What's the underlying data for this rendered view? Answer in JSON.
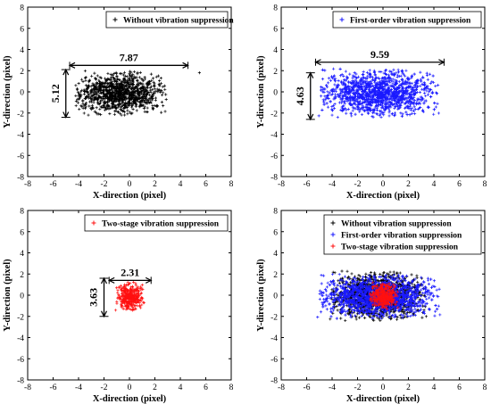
{
  "chart_data": [
    {
      "type": "scatter",
      "xlabel": "X-direction (pixel)",
      "ylabel": "Y-direction (pixel)",
      "xlim": [
        -8,
        8
      ],
      "ylim": [
        -8,
        8
      ],
      "xticks": [
        "-8",
        "-6",
        "-4",
        "-2",
        "0",
        "2",
        "4",
        "6",
        "8"
      ],
      "yticks": [
        "-8",
        "-6",
        "-4",
        "-2",
        "0",
        "2",
        "4",
        "6",
        "8"
      ],
      "legend_position": "top-right",
      "series": [
        {
          "name": "Without vibration suppression",
          "color": "#000000",
          "center": [
            -0.8,
            0.0
          ],
          "x_range": [
            -4.4,
            2.9
          ],
          "y_range": [
            -2.2,
            2.0
          ],
          "outliers": [
            [
              5.5,
              1.8
            ]
          ]
        }
      ],
      "annotations": [
        {
          "label": "7.87",
          "axis": "x",
          "from": -4.7,
          "to": 4.6,
          "at": 2.5
        },
        {
          "label": "5.12",
          "axis": "y",
          "from": -2.4,
          "to": 2.1,
          "at": -5.0
        }
      ]
    },
    {
      "type": "scatter",
      "xlabel": "X-direction (pixel)",
      "ylabel": "Y-direction (pixel)",
      "xlim": [
        -8,
        8
      ],
      "ylim": [
        -8,
        8
      ],
      "xticks": [
        "-8",
        "-6",
        "-4",
        "-2",
        "0",
        "2",
        "4",
        "6",
        "8"
      ],
      "yticks": [
        "-8",
        "-6",
        "-4",
        "-2",
        "0",
        "2",
        "4",
        "6",
        "8"
      ],
      "legend_position": "top-right",
      "series": [
        {
          "name": "First-order vibration suppression",
          "color": "#1a1aff",
          "center": [
            0.0,
            0.2
          ],
          "x_range": [
            -5.1,
            4.5
          ],
          "y_range": [
            -2.4,
            2.2
          ],
          "outliers": []
        }
      ],
      "annotations": [
        {
          "label": "9.59",
          "axis": "x",
          "from": -5.3,
          "to": 4.8,
          "at": 2.8
        },
        {
          "label": "4.63",
          "axis": "y",
          "from": -2.6,
          "to": 1.8,
          "at": -5.7
        }
      ]
    },
    {
      "type": "scatter",
      "xlabel": "X-direction (pixel)",
      "ylabel": "Y-direction (pixel)",
      "xlim": [
        -8,
        8
      ],
      "ylim": [
        -8,
        8
      ],
      "xticks": [
        "-8",
        "-6",
        "-4",
        "-2",
        "0",
        "2",
        "4",
        "6",
        "8"
      ],
      "yticks": [
        "-8",
        "-6",
        "-4",
        "-2",
        "0",
        "2",
        "4",
        "6",
        "8"
      ],
      "legend_position": "top-right",
      "series": [
        {
          "name": "Two-stage vibration suppression",
          "color": "#ff1010",
          "center": [
            0.1,
            -0.1
          ],
          "x_range": [
            -1.1,
            1.2
          ],
          "y_range": [
            -1.5,
            1.3
          ],
          "outliers": []
        }
      ],
      "annotations": [
        {
          "label": "2.31",
          "axis": "x",
          "from": -1.6,
          "to": 1.7,
          "at": 1.4
        },
        {
          "label": "3.63",
          "axis": "y",
          "from": -2.0,
          "to": 1.6,
          "at": -2.0
        }
      ]
    },
    {
      "type": "scatter",
      "xlabel": "X-direction (pixel)",
      "ylabel": "Y-direction (pixel)",
      "xlim": [
        -8,
        8
      ],
      "ylim": [
        -8,
        8
      ],
      "xticks": [
        "-8",
        "-6",
        "-4",
        "-2",
        "0",
        "2",
        "4",
        "6",
        "8"
      ],
      "yticks": [
        "-8",
        "-6",
        "-4",
        "-2",
        "0",
        "2",
        "4",
        "6",
        "8"
      ],
      "legend_position": "top-right",
      "series": [
        {
          "name": "Without vibration suppression",
          "color": "#000000",
          "center": [
            -0.5,
            0.0
          ],
          "x_range": [
            -4.2,
            3.5
          ],
          "y_range": [
            -2.4,
            2.3
          ],
          "outliers": []
        },
        {
          "name": "First-order vibration suppression",
          "color": "#1a1aff",
          "center": [
            0.0,
            0.1
          ],
          "x_range": [
            -5.2,
            4.6
          ],
          "y_range": [
            -2.2,
            2.0
          ],
          "outliers": []
        },
        {
          "name": "Two-stage vibration suppression",
          "color": "#ff1010",
          "center": [
            0.1,
            -0.1
          ],
          "x_range": [
            -1.1,
            1.2
          ],
          "y_range": [
            -1.4,
            1.2
          ],
          "outliers": []
        }
      ],
      "annotations": []
    }
  ]
}
